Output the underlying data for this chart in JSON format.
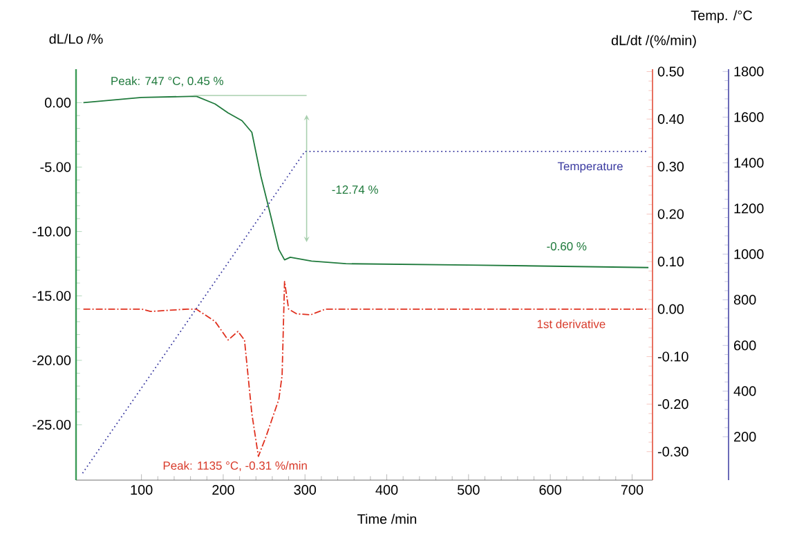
{
  "chart_data": {
    "type": "line",
    "xlabel": "Time /min",
    "ylabel": "dL/Lo /%",
    "y2label": "dL/dt /(%/min)",
    "y3label": "Temp. /°C",
    "xlim": [
      20,
      725
    ],
    "xticks": [
      100,
      200,
      300,
      400,
      500,
      600,
      700
    ],
    "ylim": [
      -29.3,
      2.6
    ],
    "yticks": [
      {
        "value": 0,
        "label": "0.00"
      },
      {
        "value": -5,
        "label": "-5.00"
      },
      {
        "value": -10,
        "label": "-10.00"
      },
      {
        "value": -15,
        "label": "-15.00"
      },
      {
        "value": -20,
        "label": "-20.00"
      },
      {
        "value": -25,
        "label": "-25.00"
      }
    ],
    "y2lim": [
      -0.36,
      0.505
    ],
    "y2ticks": [
      {
        "value": 0.5,
        "label": "0.50"
      },
      {
        "value": 0.4,
        "label": "0.40"
      },
      {
        "value": 0.3,
        "label": "0.30"
      },
      {
        "value": 0.2,
        "label": "0.20"
      },
      {
        "value": 0.1,
        "label": "0.10"
      },
      {
        "value": 0,
        "label": "0.00"
      },
      {
        "value": -0.1,
        "label": "-0.10"
      },
      {
        "value": -0.2,
        "label": "-0.20"
      },
      {
        "value": -0.3,
        "label": "-0.30"
      }
    ],
    "y3lim": [
      10,
      1810
    ],
    "y3ticks": [
      200,
      400,
      600,
      800,
      1000,
      1200,
      1400,
      1600,
      1800
    ],
    "series": [
      {
        "color": "#1f7a3c",
        "line_style": "solid",
        "x": [
          29,
          100,
          167,
          190,
          206,
          223,
          235,
          246,
          257,
          268,
          275,
          282,
          308,
          350,
          500,
          720
        ],
        "values": [
          0.0,
          0.4,
          0.5,
          -0.1,
          -0.8,
          -1.4,
          -2.3,
          -5.7,
          -8.5,
          -11.4,
          -12.2,
          -12.0,
          -12.3,
          -12.5,
          -12.6,
          -12.8
        ]
      },
      {
        "name": "1st derivative",
        "axis": "y2",
        "color": "#e0301e",
        "line_style": "dashdot",
        "x": [
          29,
          100,
          111,
          156,
          167,
          190,
          206,
          218,
          226,
          235,
          243,
          252,
          268,
          272,
          275,
          280,
          290,
          307,
          325,
          720
        ],
        "values": [
          0.0,
          0.0,
          -0.005,
          0.0,
          0.0,
          -0.026,
          -0.065,
          -0.047,
          -0.065,
          -0.22,
          -0.31,
          -0.27,
          -0.19,
          -0.14,
          0.058,
          0.0,
          -0.01,
          -0.012,
          0.0,
          0.0
        ]
      },
      {
        "name": "Temperature",
        "axis": "y3",
        "color": "#3a3aa0",
        "line_style": "dotted",
        "x": [
          28,
          300,
          720
        ],
        "values": [
          40,
          1450,
          1450
        ]
      }
    ],
    "annotations": [
      "Peak: 747 °C, 0.45 %",
      "-12.74 %",
      "-0.60 %",
      "Peak: 1135 °C, -0.31 %/min"
    ]
  }
}
